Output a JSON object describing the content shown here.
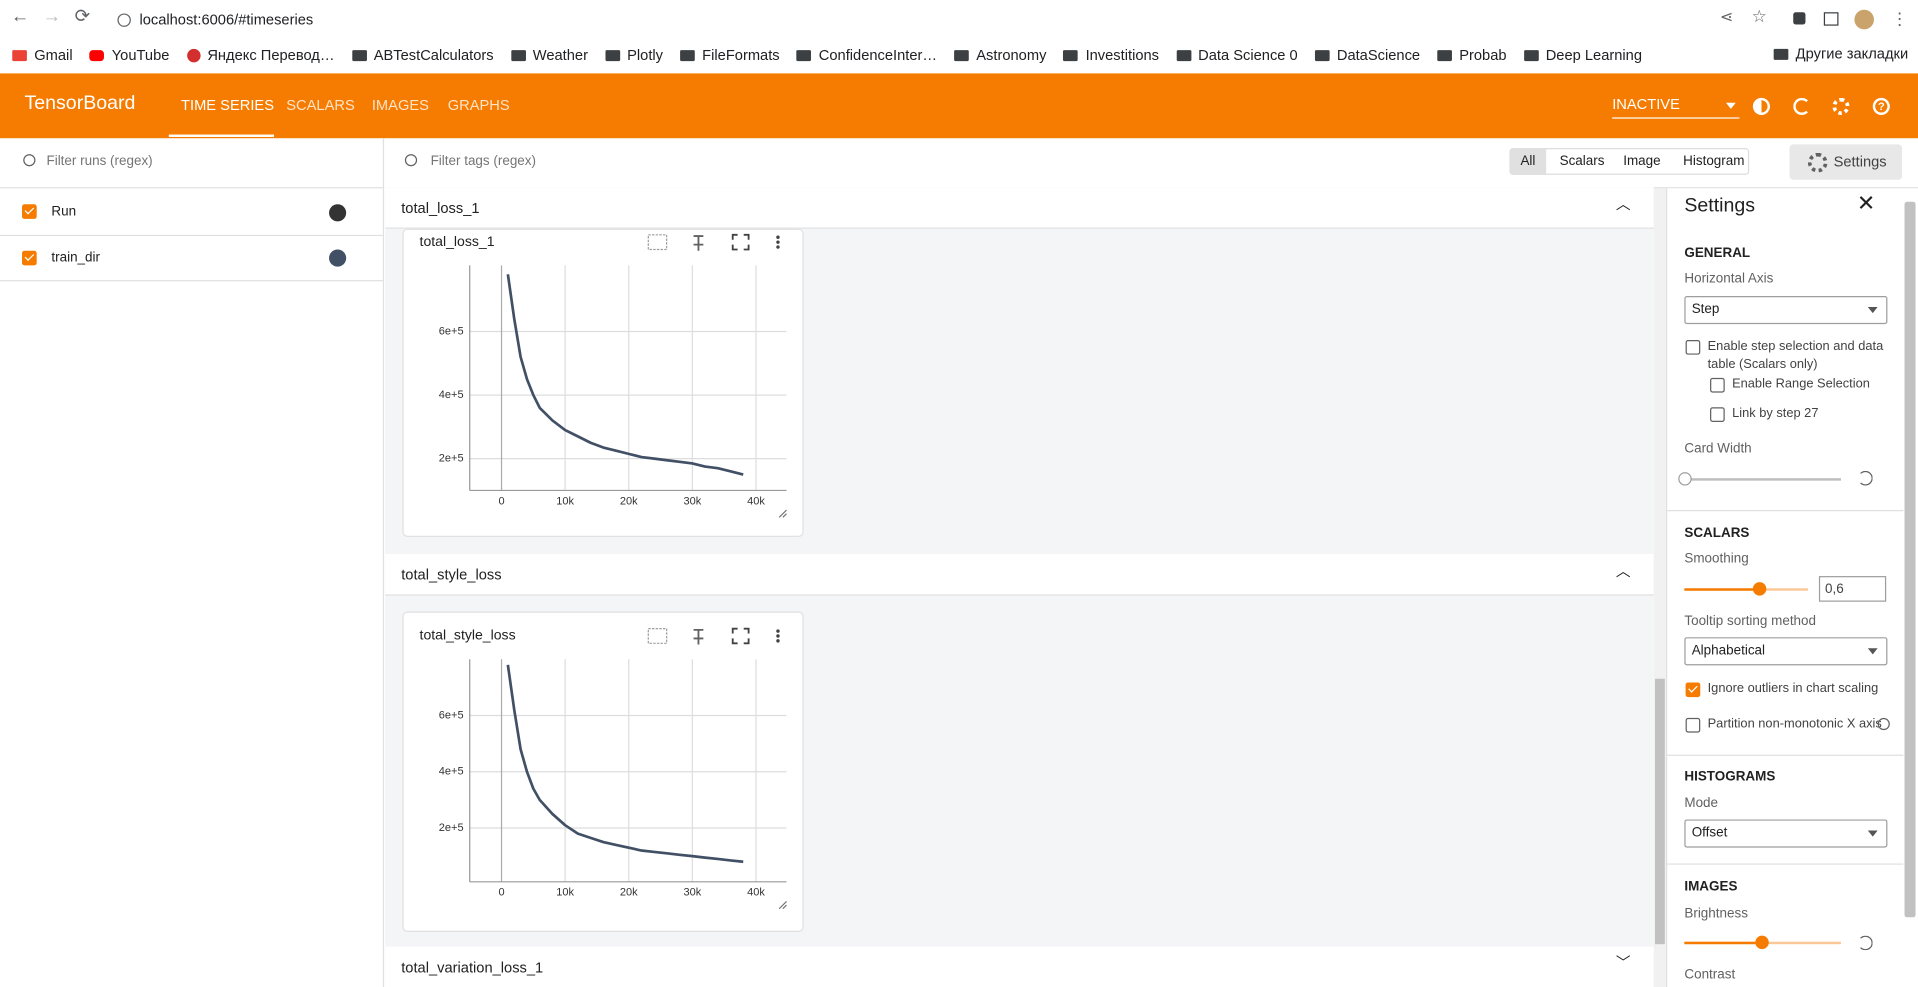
{
  "browser": {
    "url": "localhost:6006/#timeseries",
    "bookmarks": [
      "Gmail",
      "YouTube",
      "Яндекс Перевод…",
      "ABTestCalculators",
      "Weather",
      "Plotly",
      "FileFormats",
      "ConfidenceInter…",
      "Astronomy",
      "Investitions",
      "Data Science 0",
      "DataScience",
      "Probab",
      "Deep Learning"
    ],
    "other_bookmarks": "Другие закладки"
  },
  "header": {
    "brand": "TensorBoard",
    "tabs": [
      "TIME SERIES",
      "SCALARS",
      "IMAGES",
      "GRAPHS"
    ],
    "status": "INACTIVE"
  },
  "runs": {
    "filter_placeholder": "Filter runs (regex)",
    "items": [
      "Run",
      "train_dir"
    ]
  },
  "toolbar": {
    "filter_placeholder": "Filter tags (regex)",
    "type_filters": [
      "All",
      "Scalars",
      "Image",
      "Histogram"
    ],
    "settings_button": "Settings"
  },
  "sections": [
    {
      "title": "total_loss_1"
    },
    {
      "title": "total_style_loss"
    },
    {
      "title": "total_variation_loss_1"
    }
  ],
  "chart_data": [
    {
      "type": "line",
      "title": "total_loss_1",
      "x": [
        1000,
        2000,
        3000,
        4000,
        5000,
        6000,
        8000,
        10000,
        12000,
        14000,
        16000,
        18000,
        20000,
        22000,
        24000,
        26000,
        28000,
        30000,
        32000,
        34000,
        36000,
        38000
      ],
      "series": [
        {
          "name": "train_dir",
          "color": "#425066",
          "values": [
            780000,
            640000,
            520000,
            450000,
            400000,
            360000,
            320000,
            290000,
            270000,
            250000,
            235000,
            225000,
            215000,
            205000,
            200000,
            195000,
            190000,
            185000,
            175000,
            170000,
            160000,
            150000
          ]
        }
      ],
      "xlim": [
        -5000,
        44800
      ],
      "ylim": [
        100000,
        808000
      ],
      "xticks": [
        0,
        {
          "value": 10000,
          "label": "10k"
        },
        {
          "value": 20000,
          "label": "20k"
        },
        {
          "value": 30000,
          "label": "30k"
        },
        {
          "value": 40000,
          "label": "40k"
        }
      ],
      "yticks": [
        {
          "value": 200000,
          "label": "2e+5"
        },
        {
          "value": 400000,
          "label": "4e+5"
        },
        {
          "value": 600000,
          "label": "6e+5"
        }
      ],
      "grid": true
    },
    {
      "type": "line",
      "title": "total_style_loss",
      "x": [
        1000,
        2000,
        3000,
        4000,
        5000,
        6000,
        8000,
        10000,
        12000,
        14000,
        16000,
        18000,
        20000,
        22000,
        24000,
        26000,
        28000,
        30000,
        32000,
        34000,
        36000,
        38000
      ],
      "series": [
        {
          "name": "train_dir",
          "color": "#425066",
          "values": [
            780000,
            620000,
            480000,
            400000,
            340000,
            300000,
            250000,
            210000,
            180000,
            165000,
            150000,
            140000,
            130000,
            120000,
            115000,
            110000,
            105000,
            100000,
            95000,
            90000,
            85000,
            80000
          ]
        }
      ],
      "xlim": [
        -5000,
        44800
      ],
      "ylim": [
        8700,
        800000
      ],
      "xticks": [
        0,
        {
          "value": 10000,
          "label": "10k"
        },
        {
          "value": 20000,
          "label": "20k"
        },
        {
          "value": 30000,
          "label": "30k"
        },
        {
          "value": 40000,
          "label": "40k"
        }
      ],
      "yticks": [
        {
          "value": 200000,
          "label": "2e+5"
        },
        {
          "value": 400000,
          "label": "4e+5"
        },
        {
          "value": 600000,
          "label": "6e+5"
        }
      ],
      "grid": true
    }
  ],
  "settings": {
    "title": "Settings",
    "general": {
      "heading": "GENERAL",
      "horizontal_axis_label": "Horizontal Axis",
      "horizontal_axis": "Step",
      "step_selection": "Enable step selection and data table (Scalars only)",
      "range_selection": "Enable Range Selection",
      "link_by_step": "Link by step 27",
      "card_width": "Card Width"
    },
    "scalars": {
      "heading": "SCALARS",
      "smoothing_label": "Smoothing",
      "smoothing": "0,6",
      "tooltip_sorting_label": "Tooltip sorting method",
      "tooltip_sorting": "Alphabetical",
      "ignore_outliers": "Ignore outliers in chart scaling",
      "partition": "Partition non-monotonic X axis"
    },
    "histograms": {
      "heading": "HISTOGRAMS",
      "mode_label": "Mode",
      "mode": "Offset"
    },
    "images": {
      "heading": "IMAGES",
      "brightness": "Brightness",
      "contrast": "Contrast"
    }
  }
}
